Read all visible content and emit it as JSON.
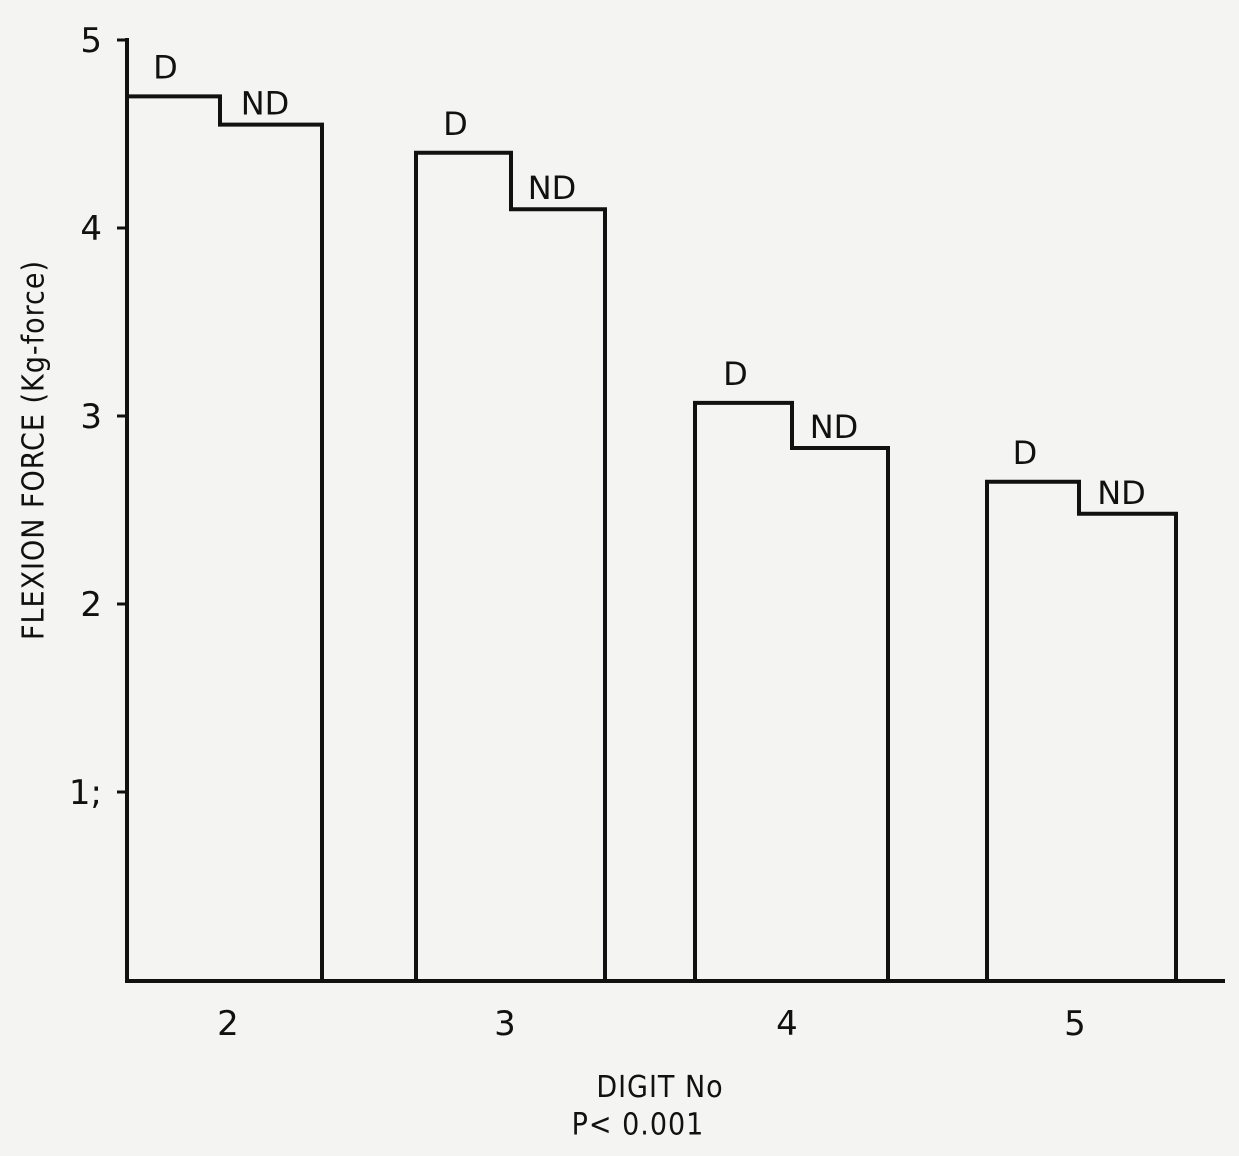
{
  "chart_data": {
    "type": "bar",
    "categories": [
      "2",
      "3",
      "4",
      "5"
    ],
    "series": [
      {
        "name": "D",
        "values": [
          4.7,
          4.4,
          3.07,
          2.65
        ]
      },
      {
        "name": "ND",
        "values": [
          4.55,
          4.1,
          2.83,
          2.48
        ]
      }
    ],
    "ylabel": "FLEXION FORCE (Kg-force)",
    "xlabel": "DIGIT No",
    "ylim": [
      0,
      5
    ],
    "yticks": [
      "1;",
      "2",
      "3",
      "4",
      "5"
    ],
    "annotation": "P< 0.001",
    "grid": false,
    "colors": {
      "line": "#111111",
      "background": "#f4f4f2"
    }
  }
}
